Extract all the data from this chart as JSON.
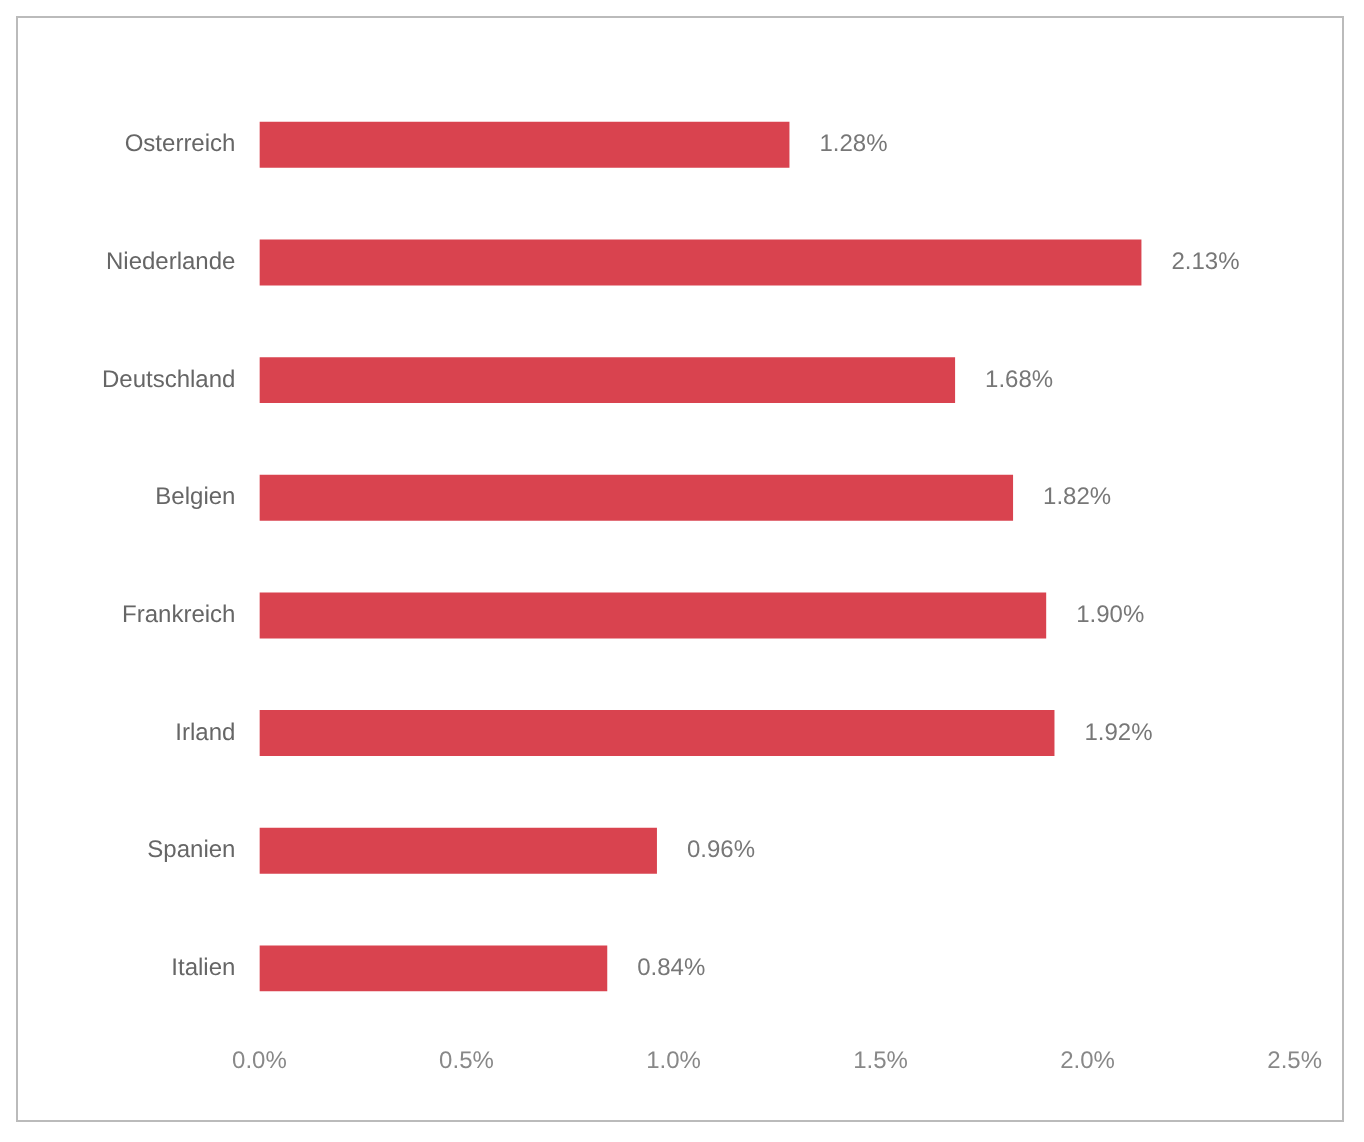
{
  "chart_data": {
    "type": "bar",
    "orientation": "horizontal",
    "categories": [
      "Osterreich",
      "Niederlande",
      "Deutschland",
      "Belgien",
      "Frankreich",
      "Irland",
      "Spanien",
      "Italien"
    ],
    "values": [
      1.28,
      2.13,
      1.68,
      1.82,
      1.9,
      1.92,
      0.96,
      0.84
    ],
    "value_labels": [
      "1.28%",
      "2.13%",
      "1.68%",
      "1.82%",
      "1.90%",
      "1.92%",
      "0.96%",
      "0.84%"
    ],
    "color": "#d9434f",
    "xlim": [
      0,
      2.5
    ],
    "xticks": [
      {
        "value": 0,
        "label": "0.0%"
      },
      {
        "value": 0.5,
        "label": "0.5%"
      },
      {
        "value": 1,
        "label": "1.0%"
      },
      {
        "value": 1.5,
        "label": "1.5%"
      },
      {
        "value": 2,
        "label": "2.0%"
      },
      {
        "value": 2.5,
        "label": "2.5%"
      }
    ],
    "grid": false,
    "legend": false
  }
}
